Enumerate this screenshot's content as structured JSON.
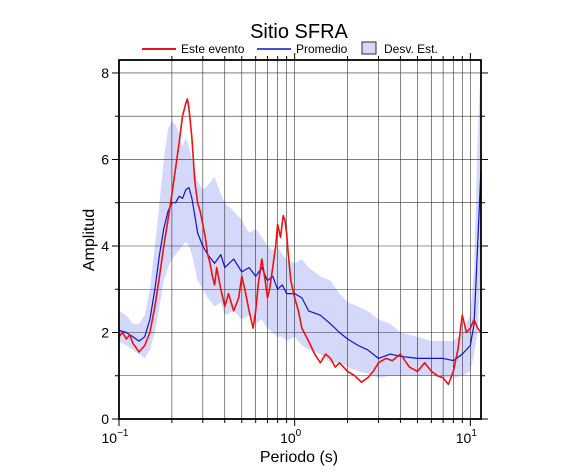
{
  "chart_data": {
    "type": "line",
    "title": "Sitio SFRA",
    "xlabel": "Periodo (s)",
    "ylabel": "Amplitud",
    "x_scale": "log",
    "xlim": [
      0.1,
      11.5
    ],
    "ylim": [
      0,
      8.3
    ],
    "grid": true,
    "legend_position": "top",
    "x_ticks": [
      {
        "value": 0.1,
        "base": "10",
        "exp": "−1"
      },
      {
        "value": 1,
        "base": "10",
        "exp": "0"
      },
      {
        "value": 10,
        "base": "10",
        "exp": "1"
      }
    ],
    "y_ticks": [
      0,
      2,
      4,
      6,
      8
    ],
    "series": [
      {
        "name": "Este evento",
        "color": "#ee1111",
        "x": [
          0.1,
          0.105,
          0.11,
          0.115,
          0.12,
          0.125,
          0.13,
          0.14,
          0.15,
          0.16,
          0.17,
          0.18,
          0.19,
          0.2,
          0.21,
          0.22,
          0.23,
          0.24,
          0.245,
          0.25,
          0.26,
          0.27,
          0.28,
          0.29,
          0.3,
          0.31,
          0.32,
          0.33,
          0.34,
          0.35,
          0.36,
          0.38,
          0.4,
          0.42,
          0.45,
          0.48,
          0.5,
          0.52,
          0.55,
          0.58,
          0.6,
          0.62,
          0.65,
          0.68,
          0.7,
          0.72,
          0.75,
          0.78,
          0.8,
          0.83,
          0.86,
          0.88,
          0.9,
          0.92,
          0.95,
          1.0,
          1.05,
          1.1,
          1.2,
          1.3,
          1.4,
          1.5,
          1.6,
          1.7,
          1.8,
          2.0,
          2.2,
          2.4,
          2.6,
          2.8,
          3.0,
          3.3,
          3.6,
          4.0,
          4.5,
          5.0,
          5.5,
          6.0,
          6.5,
          7.0,
          7.5,
          8.0,
          8.5,
          9.0,
          9.5,
          10.0,
          10.5,
          11.0,
          11.5
        ],
        "y": [
          1.9,
          2.0,
          1.85,
          1.95,
          1.75,
          1.65,
          1.55,
          1.7,
          2.0,
          2.6,
          3.3,
          4.0,
          4.6,
          5.2,
          5.8,
          6.4,
          7.0,
          7.3,
          7.4,
          7.2,
          6.5,
          5.5,
          5.0,
          4.8,
          4.5,
          4.2,
          3.8,
          3.6,
          3.3,
          3.1,
          3.5,
          3.0,
          2.6,
          2.9,
          2.5,
          2.8,
          3.3,
          3.0,
          2.5,
          2.1,
          2.5,
          3.1,
          3.7,
          3.2,
          2.8,
          3.0,
          3.5,
          4.0,
          4.5,
          4.2,
          4.7,
          4.6,
          4.3,
          3.8,
          3.2,
          2.8,
          2.5,
          2.1,
          1.8,
          1.5,
          1.3,
          1.5,
          1.4,
          1.2,
          1.3,
          1.1,
          1.0,
          0.85,
          0.95,
          1.1,
          1.3,
          1.4,
          1.35,
          1.5,
          1.2,
          1.1,
          1.3,
          1.1,
          1.0,
          0.95,
          0.8,
          1.1,
          1.6,
          2.4,
          2.0,
          2.1,
          2.3,
          2.1,
          2.0
        ]
      },
      {
        "name": "Promedio",
        "color": "#1111cc",
        "x": [
          0.1,
          0.11,
          0.12,
          0.13,
          0.14,
          0.15,
          0.16,
          0.17,
          0.18,
          0.19,
          0.2,
          0.21,
          0.22,
          0.23,
          0.24,
          0.25,
          0.26,
          0.27,
          0.28,
          0.3,
          0.32,
          0.35,
          0.38,
          0.4,
          0.45,
          0.5,
          0.55,
          0.6,
          0.65,
          0.7,
          0.75,
          0.8,
          0.85,
          0.9,
          1.0,
          1.1,
          1.2,
          1.4,
          1.6,
          1.8,
          2.0,
          2.3,
          2.6,
          3.0,
          3.5,
          4.0,
          5.0,
          6.0,
          7.0,
          8.0,
          9.0,
          10.0,
          10.5,
          11.0,
          11.5
        ],
        "y": [
          2.05,
          2.0,
          1.9,
          1.8,
          1.9,
          2.3,
          3.0,
          3.8,
          4.4,
          4.8,
          5.0,
          5.0,
          5.15,
          5.1,
          5.3,
          5.35,
          5.1,
          4.7,
          4.3,
          4.0,
          3.8,
          3.6,
          3.8,
          3.5,
          3.7,
          3.4,
          3.5,
          3.3,
          3.5,
          3.2,
          3.3,
          3.0,
          3.1,
          2.9,
          2.9,
          2.8,
          2.5,
          2.4,
          2.2,
          2.0,
          1.85,
          1.7,
          1.6,
          1.4,
          1.5,
          1.45,
          1.4,
          1.4,
          1.4,
          1.35,
          1.5,
          1.7,
          2.2,
          4.0,
          5.8
        ]
      }
    ],
    "band": {
      "name": "Desv. Est.",
      "color": "#d4d8fb",
      "x": [
        0.1,
        0.11,
        0.12,
        0.13,
        0.14,
        0.15,
        0.16,
        0.17,
        0.18,
        0.19,
        0.2,
        0.21,
        0.22,
        0.23,
        0.24,
        0.25,
        0.26,
        0.27,
        0.28,
        0.3,
        0.32,
        0.35,
        0.38,
        0.4,
        0.45,
        0.5,
        0.55,
        0.6,
        0.65,
        0.7,
        0.75,
        0.8,
        0.85,
        0.9,
        1.0,
        1.1,
        1.2,
        1.4,
        1.6,
        1.8,
        2.0,
        2.3,
        2.6,
        3.0,
        3.5,
        4.0,
        5.0,
        6.0,
        7.0,
        8.0,
        9.0,
        10.0,
        10.5,
        11.0,
        11.5
      ],
      "upper": [
        2.5,
        2.4,
        2.2,
        2.2,
        2.4,
        3.0,
        4.0,
        5.0,
        6.0,
        6.7,
        6.9,
        6.8,
        6.6,
        6.3,
        6.5,
        6.3,
        6.0,
        5.7,
        5.5,
        5.3,
        5.4,
        5.6,
        5.2,
        5.0,
        4.8,
        4.6,
        4.3,
        4.4,
        4.2,
        4.0,
        3.9,
        4.0,
        3.8,
        3.7,
        3.6,
        3.7,
        3.5,
        3.3,
        3.2,
        2.9,
        2.7,
        2.6,
        2.5,
        2.3,
        2.2,
        2.0,
        1.9,
        1.8,
        1.8,
        1.8,
        2.0,
        2.4,
        3.5,
        6.5,
        8.3
      ],
      "lower": [
        1.8,
        1.7,
        1.6,
        1.5,
        1.4,
        1.6,
        2.0,
        2.6,
        3.2,
        3.5,
        3.7,
        3.8,
        3.9,
        4.0,
        4.1,
        4.0,
        3.8,
        3.5,
        3.2,
        3.0,
        2.8,
        2.6,
        2.7,
        2.4,
        2.5,
        2.3,
        2.4,
        2.2,
        2.3,
        2.1,
        2.0,
        1.9,
        1.9,
        1.8,
        1.9,
        1.7,
        1.6,
        1.5,
        1.3,
        1.3,
        1.2,
        1.1,
        1.05,
        0.95,
        1.0,
        1.0,
        1.0,
        1.0,
        0.95,
        0.95,
        1.0,
        1.1,
        1.5,
        2.0,
        3.5
      ]
    }
  }
}
